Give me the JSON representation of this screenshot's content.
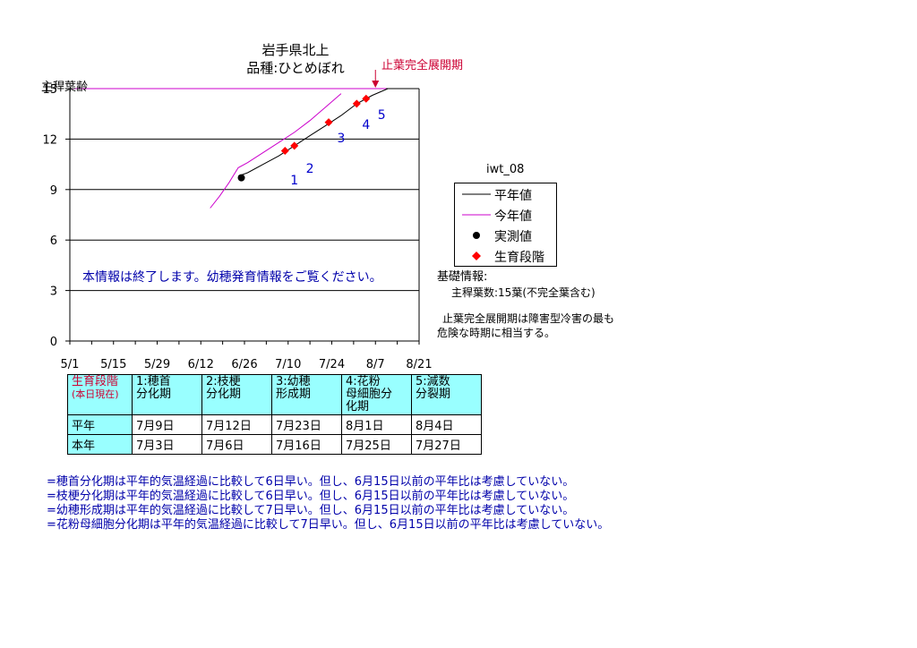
{
  "chart_data": {
    "type": "line",
    "title": "岩手県北上",
    "subtitle": "品種:ひとめぼれ",
    "ylabel": "主稈葉齢",
    "ylim": [
      0,
      15
    ],
    "yticks": [
      "0",
      "3",
      "6",
      "9",
      "12",
      "15"
    ],
    "xtick_labels": [
      "5/1",
      "5/15",
      "5/29",
      "6/12",
      "6/26",
      "7/10",
      "7/24",
      "8/7",
      "8/21"
    ],
    "xlim_days": [
      0,
      112
    ],
    "grid": "horizontal",
    "series": [
      {
        "name": "平年値",
        "color": "#000000",
        "style": "line",
        "x": [
          54,
          57,
          62,
          67,
          72,
          77,
          82,
          87,
          92,
          97,
          102
        ],
        "y": [
          9.8,
          10.0,
          10.5,
          11.0,
          11.6,
          12.2,
          12.8,
          13.4,
          14.1,
          14.6,
          15.0
        ]
      },
      {
        "name": "今年値",
        "color": "#cc00cc",
        "style": "line",
        "x": [
          45,
          48,
          51,
          54,
          57,
          62,
          67,
          72,
          77,
          82,
          87
        ],
        "y": [
          7.9,
          8.6,
          9.4,
          10.3,
          10.6,
          11.2,
          11.8,
          12.4,
          13.1,
          13.9,
          14.7
        ]
      },
      {
        "name": "実測値",
        "color": "#000000",
        "style": "point",
        "x": [
          55
        ],
        "y": [
          9.7
        ]
      },
      {
        "name": "生育段階",
        "color": "#ff0000",
        "style": "diamond",
        "x": [
          69,
          72,
          83,
          92,
          95
        ],
        "y": [
          11.3,
          11.6,
          13.0,
          14.1,
          14.4
        ]
      }
    ],
    "stage_labels": [
      {
        "text": "1",
        "x": 72,
        "y": 9.3
      },
      {
        "text": "2",
        "x": 77,
        "y": 10.0
      },
      {
        "text": "3",
        "x": 87,
        "y": 11.8
      },
      {
        "text": "4",
        "x": 95,
        "y": 12.6
      },
      {
        "text": "5",
        "x": 100,
        "y": 13.2
      }
    ],
    "annotation": {
      "text": "止葉完全展開期",
      "x": 98,
      "y": 15
    }
  },
  "legend": {
    "title": "iwt_08",
    "items": [
      {
        "label": "平年値",
        "kind": "line",
        "color": "#000000"
      },
      {
        "label": "今年値",
        "kind": "line",
        "color": "#cc00cc"
      },
      {
        "label": "実測値",
        "kind": "dot",
        "color": "#000000"
      },
      {
        "label": "生育段階",
        "kind": "diamond",
        "color": "#ff0000"
      }
    ]
  },
  "info": {
    "heading": "基礎情報:",
    "leaf_count": "主稈葉数:15葉(不完全葉含む)",
    "note_line1": "止葉完全展開期は障害型冷害の最も",
    "note_line2": "危険な時期に相当する。"
  },
  "notice": "本情報は終了します。幼穂発育情報をご覧ください。",
  "stage_table": {
    "header_label": "生育段階",
    "header_sub": "(本日現在)",
    "columns": [
      {
        "l1": "1:穂首",
        "l2": "分化期",
        "l3": ""
      },
      {
        "l1": "2:枝梗",
        "l2": "分化期",
        "l3": ""
      },
      {
        "l1": "3:幼穂",
        "l2": "形成期",
        "l3": ""
      },
      {
        "l1": "4:花粉",
        "l2": "母細胞分",
        "l3": "化期"
      },
      {
        "l1": "5:減数",
        "l2": "分裂期",
        "l3": ""
      }
    ],
    "rows": [
      {
        "label": "平年",
        "values": [
          "7月9日",
          "7月12日",
          "7月23日",
          "8月1日",
          "8月4日"
        ]
      },
      {
        "label": "本年",
        "values": [
          "7月3日",
          "7月6日",
          "7月16日",
          "7月25日",
          "7月27日"
        ]
      }
    ]
  },
  "notes": [
    "=穂首分化期は平年的気温経過に比較して6日早い。但し、6月15日以前の平年比は考慮していない。",
    "=枝梗分化期は平年的気温経過に比較して6日早い。但し、6月15日以前の平年比は考慮していない。",
    "=幼穂形成期は平年的気温経過に比較して7日早い。但し、6月15日以前の平年比は考慮していない。",
    "=花粉母細胞分化期は平年的気温経過に比較して7日早い。但し、6月15日以前の平年比は考慮していない。"
  ]
}
